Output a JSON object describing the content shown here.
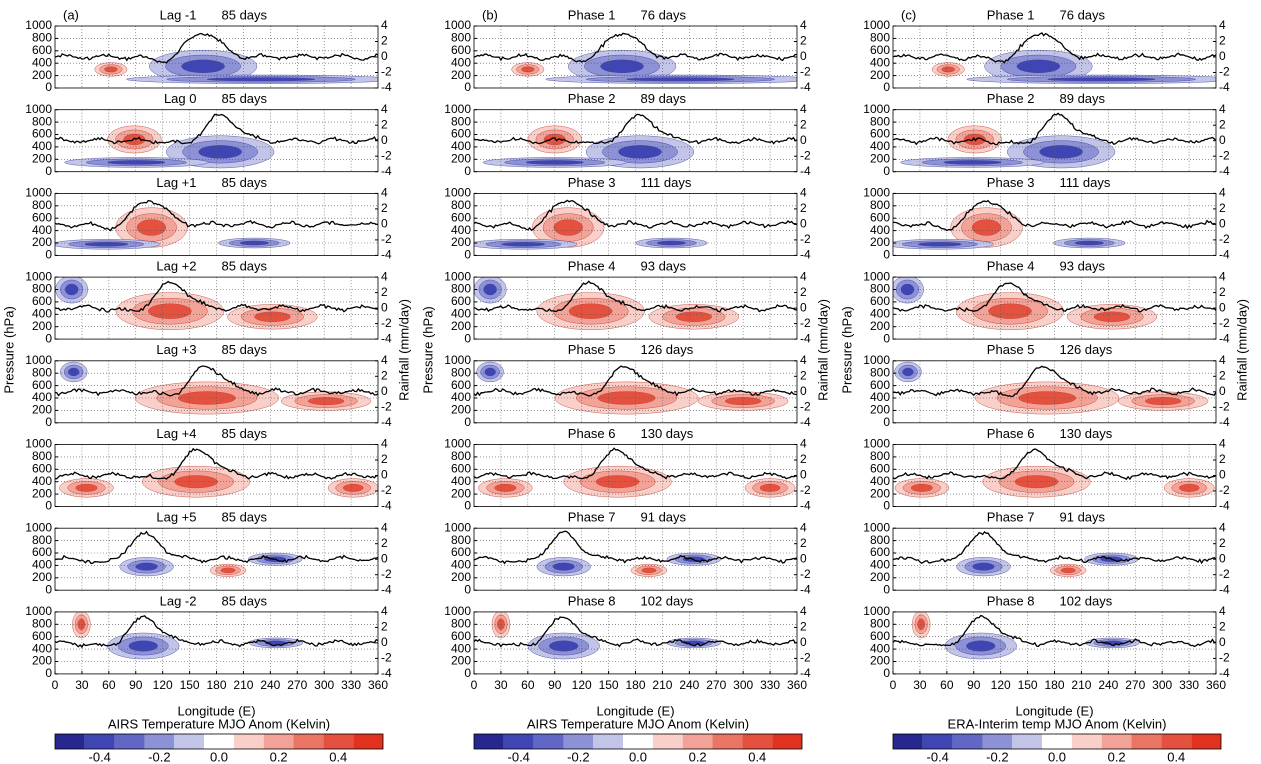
{
  "chart_data": [
    {
      "type": "contour",
      "label": "(a)",
      "ylabel": "Pressure (hPa)",
      "y2label": "Rainfall (mm/day)",
      "xlabel": "Longitude (E)",
      "colorbar_title": "AIRS Temperature MJO Anom (Kelvin)",
      "panels": [
        {
          "title": "Lag -1",
          "days": "85 days"
        },
        {
          "title": "Lag 0",
          "days": "85 days"
        },
        {
          "title": "Lag +1",
          "days": "85 days"
        },
        {
          "title": "Lag +2",
          "days": "85 days"
        },
        {
          "title": "Lag +3",
          "days": "85 days"
        },
        {
          "title": "Lag +4",
          "days": "85 days"
        },
        {
          "title": "Lag +5",
          "days": "85 days"
        },
        {
          "title": "Lag -2",
          "days": "85 days"
        }
      ],
      "xlim": [
        0,
        360
      ],
      "xticks": [
        0,
        30,
        60,
        90,
        120,
        150,
        180,
        210,
        240,
        270,
        300,
        330,
        360
      ],
      "ylim": [
        1000,
        0
      ],
      "yticks": [
        0,
        200,
        400,
        600,
        800,
        1000
      ],
      "y2lim": [
        -4,
        4
      ],
      "y2ticks": [
        4,
        2,
        0,
        -2,
        -4
      ],
      "clim": [
        -0.55,
        0.55
      ],
      "cticks": [
        -0.4,
        -0.2,
        {
          "value": 0,
          "label": "0.0"
        },
        0.2,
        0.4
      ],
      "colors": [
        "#26288f",
        "#3f45b3",
        "#6267c6",
        "#8d91d6",
        "#c3c5e8",
        "#ffffff",
        "#f8cfc9",
        "#f2a297",
        "#ea7565",
        "#e4513f",
        "#e0321f"
      ],
      "grid": true
    },
    {
      "type": "contour",
      "label": "(b)",
      "ylabel": "Pressure (hPa)",
      "y2label": "Rainfall (mm/day)",
      "xlabel": "Longitude (E)",
      "colorbar_title": "AIRS Temperature MJO Anom (Kelvin)",
      "panels": [
        {
          "title": "Phase 1",
          "days": "76 days"
        },
        {
          "title": "Phase 2",
          "days": "89 days"
        },
        {
          "title": "Phase 3",
          "days": "111 days"
        },
        {
          "title": "Phase 4",
          "days": "93 days"
        },
        {
          "title": "Phase 5",
          "days": "126 days"
        },
        {
          "title": "Phase 6",
          "days": "130 days"
        },
        {
          "title": "Phase 7",
          "days": "91 days"
        },
        {
          "title": "Phase 8",
          "days": "102 days"
        }
      ],
      "xlim": [
        0,
        360
      ],
      "xticks": [
        0,
        30,
        60,
        90,
        120,
        150,
        180,
        210,
        240,
        270,
        300,
        330,
        360
      ],
      "ylim": [
        1000,
        0
      ],
      "yticks": [
        0,
        200,
        400,
        600,
        800,
        1000
      ],
      "y2lim": [
        -4,
        4
      ],
      "y2ticks": [
        4,
        2,
        0,
        -2,
        -4
      ],
      "clim": [
        -0.55,
        0.55
      ],
      "cticks": [
        -0.4,
        -0.2,
        {
          "value": 0,
          "label": "0.0"
        },
        0.2,
        0.4
      ],
      "colors": [
        "#26288f",
        "#3f45b3",
        "#6267c6",
        "#8d91d6",
        "#c3c5e8",
        "#ffffff",
        "#f8cfc9",
        "#f2a297",
        "#ea7565",
        "#e4513f",
        "#e0321f"
      ],
      "grid": true
    },
    {
      "type": "contour",
      "label": "(c)",
      "ylabel": "Pressure (hPa)",
      "y2label": "Rainfall (mm/day)",
      "xlabel": "Longitude (E)",
      "colorbar_title": "ERA-Interim temp MJO Anom (Kelvin)",
      "panels": [
        {
          "title": "Phase 1",
          "days": "76 days"
        },
        {
          "title": "Phase 2",
          "days": "89 days"
        },
        {
          "title": "Phase 3",
          "days": "111 days"
        },
        {
          "title": "Phase 4",
          "days": "93 days"
        },
        {
          "title": "Phase 5",
          "days": "126 days"
        },
        {
          "title": "Phase 6",
          "days": "130 days"
        },
        {
          "title": "Phase 7",
          "days": "91 days"
        },
        {
          "title": "Phase 8",
          "days": "102 days"
        }
      ],
      "xlim": [
        0,
        360
      ],
      "xticks": [
        0,
        30,
        60,
        90,
        120,
        150,
        180,
        210,
        240,
        270,
        300,
        330,
        360
      ],
      "ylim": [
        1000,
        0
      ],
      "yticks": [
        0,
        200,
        400,
        600,
        800,
        1000
      ],
      "y2lim": [
        -4,
        4
      ],
      "y2ticks": [
        4,
        2,
        0,
        -2,
        -4
      ],
      "clim": [
        -0.55,
        0.55
      ],
      "cticks": [
        -0.4,
        -0.2,
        {
          "value": 0,
          "label": "0.0"
        },
        0.2,
        0.4
      ],
      "colors": [
        "#26288f",
        "#3f45b3",
        "#6267c6",
        "#8d91d6",
        "#c3c5e8",
        "#ffffff",
        "#f8cfc9",
        "#f2a297",
        "#ea7565",
        "#e4513f",
        "#e0321f"
      ],
      "grid": true
    }
  ]
}
